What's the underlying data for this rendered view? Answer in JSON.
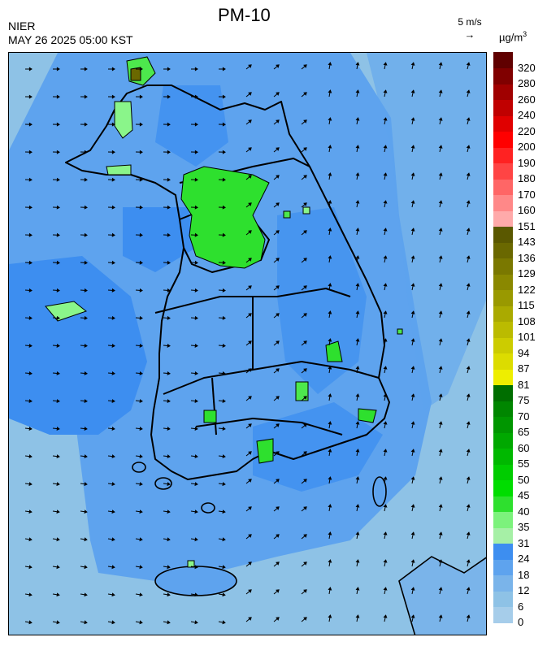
{
  "header": {
    "title": "PM-10",
    "org": "NIER",
    "datetime": "MAY 26 2025 05:00 KST",
    "wind_ref_label": "5 m/s",
    "unit_base": "µg/m",
    "unit_exp": "3"
  },
  "colors": {
    "background_sea": "#8ec2e6",
    "medium_blue": "#5b9ef0",
    "deep_blue": "#3d8ef0",
    "green": "#4de84d",
    "light_green": "#8af58a",
    "boundary": "#000000"
  },
  "colorbar": [
    {
      "label": "0",
      "color": "#a6cdea"
    },
    {
      "label": "6",
      "color": "#8ec2e6"
    },
    {
      "label": "12",
      "color": "#7ab4ea"
    },
    {
      "label": "18",
      "color": "#5ea3ee"
    },
    {
      "label": "24",
      "color": "#3d8ef0"
    },
    {
      "label": "31",
      "color": "#a6f0a6"
    },
    {
      "label": "35",
      "color": "#7cf27c"
    },
    {
      "label": "40",
      "color": "#2ee02e"
    },
    {
      "label": "45",
      "color": "#00dd00"
    },
    {
      "label": "50",
      "color": "#00cc00"
    },
    {
      "label": "55",
      "color": "#00b800"
    },
    {
      "label": "60",
      "color": "#00a800"
    },
    {
      "label": "65",
      "color": "#009600"
    },
    {
      "label": "70",
      "color": "#008600"
    },
    {
      "label": "75",
      "color": "#006e00"
    },
    {
      "label": "81",
      "color": "#eeee00"
    },
    {
      "label": "87",
      "color": "#dcdc00"
    },
    {
      "label": "94",
      "color": "#cccc00"
    },
    {
      "label": "101",
      "color": "#bbbb00"
    },
    {
      "label": "108",
      "color": "#aaaa00"
    },
    {
      "label": "115",
      "color": "#999900"
    },
    {
      "label": "122",
      "color": "#8a8800"
    },
    {
      "label": "129",
      "color": "#7a7800"
    },
    {
      "label": "136",
      "color": "#6a6800"
    },
    {
      "label": "143",
      "color": "#5a5800"
    },
    {
      "label": "151",
      "color": "#ffaaaa"
    },
    {
      "label": "160",
      "color": "#ff8888"
    },
    {
      "label": "170",
      "color": "#ff6666"
    },
    {
      "label": "180",
      "color": "#ff4444"
    },
    {
      "label": "190",
      "color": "#ff2222"
    },
    {
      "label": "200",
      "color": "#ff0000"
    },
    {
      "label": "220",
      "color": "#e00000"
    },
    {
      "label": "240",
      "color": "#c00000"
    },
    {
      "label": "260",
      "color": "#a00000"
    },
    {
      "label": "280",
      "color": "#800000"
    },
    {
      "label": "320",
      "color": "#600000"
    }
  ]
}
